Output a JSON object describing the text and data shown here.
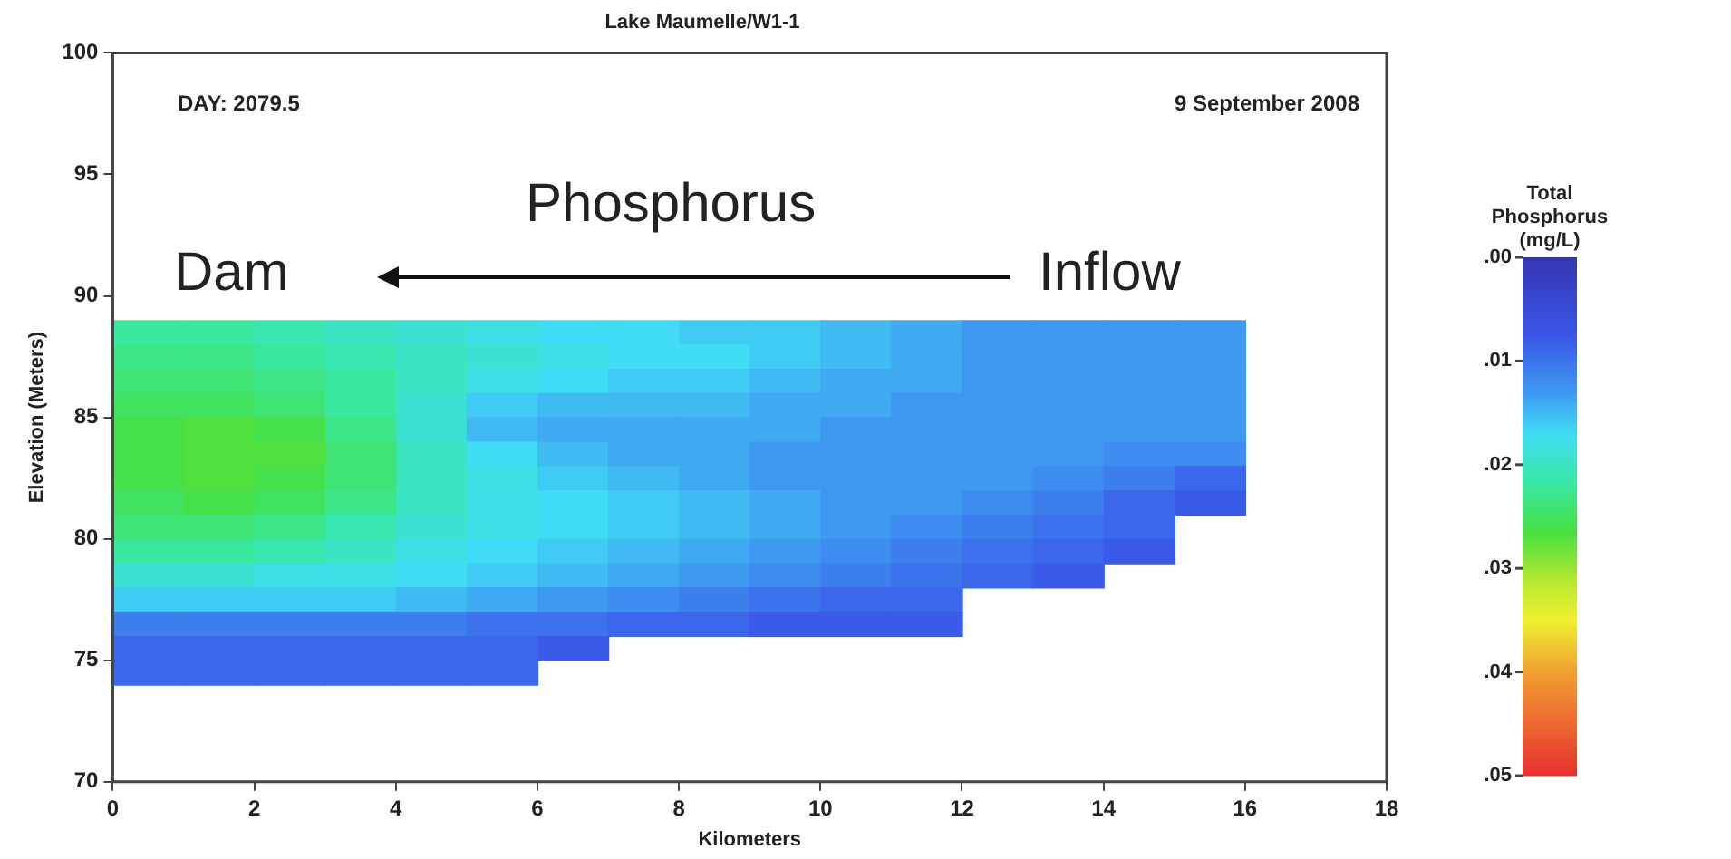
{
  "chart_data": {
    "type": "heatmap",
    "title": "Lake Maumelle/W1-1",
    "xlabel": "Kilometers",
    "ylabel": "Elevation (Meters)",
    "clabel": "Total Phosphorus (mg/L)",
    "annotations": [
      "DAY: 2079.5",
      "9 September 2008",
      "Phosphorus",
      "Dam",
      "Inflow"
    ],
    "x": [
      0.5,
      1.5,
      2.5,
      3.5,
      4.5,
      5.5,
      6.5,
      7.5,
      8.5,
      9.5,
      10.5,
      11.5,
      12.5,
      13.5,
      14.5,
      15.5
    ],
    "y": [
      88.5,
      87.5,
      86.5,
      85.5,
      84.5,
      83.5,
      82.5,
      81.5,
      80.5,
      79.5,
      78.5,
      77.5,
      76.5,
      75.5,
      74.5
    ],
    "cells": [
      [
        0.022,
        0.022,
        0.021,
        0.02,
        0.019,
        0.018,
        0.017,
        0.017,
        0.016,
        0.016,
        0.015,
        0.014,
        0.013,
        0.013,
        0.013,
        0.013
      ],
      [
        0.023,
        0.023,
        0.022,
        0.021,
        0.02,
        0.019,
        0.018,
        0.017,
        0.017,
        0.016,
        0.015,
        0.014,
        0.013,
        0.013,
        0.013,
        0.013
      ],
      [
        0.024,
        0.024,
        0.023,
        0.022,
        0.02,
        0.018,
        0.017,
        0.016,
        0.016,
        0.015,
        0.014,
        0.014,
        0.013,
        0.013,
        0.013,
        0.013
      ],
      [
        0.025,
        0.025,
        0.024,
        0.022,
        0.019,
        0.016,
        0.015,
        0.015,
        0.015,
        0.014,
        0.014,
        0.013,
        0.013,
        0.013,
        0.013,
        0.013
      ],
      [
        0.026,
        0.027,
        0.026,
        0.023,
        0.019,
        0.015,
        0.014,
        0.014,
        0.014,
        0.014,
        0.013,
        0.013,
        0.013,
        0.013,
        0.013,
        0.013
      ],
      [
        0.026,
        0.027,
        0.027,
        0.024,
        0.02,
        0.017,
        0.015,
        0.014,
        0.014,
        0.013,
        0.013,
        0.013,
        0.013,
        0.013,
        0.012,
        0.012
      ],
      [
        0.026,
        0.027,
        0.026,
        0.024,
        0.02,
        0.018,
        0.016,
        0.015,
        0.014,
        0.013,
        0.013,
        0.013,
        0.013,
        0.012,
        0.011,
        0.009
      ],
      [
        0.025,
        0.026,
        0.025,
        0.023,
        0.02,
        0.018,
        0.017,
        0.016,
        0.015,
        0.014,
        0.013,
        0.013,
        0.012,
        0.011,
        0.009,
        0.008
      ],
      [
        0.024,
        0.024,
        0.023,
        0.021,
        0.019,
        0.018,
        0.017,
        0.016,
        0.015,
        0.014,
        0.013,
        0.012,
        0.011,
        0.01,
        0.009,
        null
      ],
      [
        0.022,
        0.022,
        0.021,
        0.02,
        0.018,
        0.017,
        0.016,
        0.015,
        0.014,
        0.013,
        0.012,
        0.011,
        0.01,
        0.009,
        0.008,
        null
      ],
      [
        0.019,
        0.019,
        0.018,
        0.018,
        0.017,
        0.016,
        0.015,
        0.014,
        0.013,
        0.012,
        0.011,
        0.01,
        0.009,
        0.008,
        null,
        null
      ],
      [
        0.016,
        0.016,
        0.016,
        0.016,
        0.015,
        0.014,
        0.013,
        0.012,
        0.011,
        0.01,
        0.009,
        0.009,
        null,
        null,
        null,
        null
      ],
      [
        0.011,
        0.011,
        0.011,
        0.011,
        0.011,
        0.01,
        0.01,
        0.009,
        0.009,
        0.008,
        0.008,
        0.008,
        null,
        null,
        null,
        null
      ],
      [
        0.009,
        0.009,
        0.009,
        0.009,
        0.009,
        0.009,
        0.008,
        null,
        null,
        null,
        null,
        null,
        null,
        null,
        null,
        null
      ],
      [
        0.009,
        0.009,
        0.009,
        0.009,
        0.009,
        0.009,
        null,
        null,
        null,
        null,
        null,
        null,
        null,
        null,
        null,
        null
      ]
    ],
    "clim": [
      0.05,
      0
    ],
    "cticks": [
      {
        "value": 0,
        "label": ".00"
      },
      {
        "value": 0.01,
        "label": ".01"
      },
      {
        "value": 0.02,
        "label": ".02"
      },
      {
        "value": 0.03,
        "label": ".03"
      },
      {
        "value": 0.04,
        "label": ".04"
      },
      {
        "value": 0.05,
        "label": ".05"
      }
    ],
    "xlim": [
      0,
      18
    ],
    "xticks": [
      0,
      2,
      4,
      6,
      8,
      10,
      12,
      14,
      16,
      18
    ],
    "ylim": [
      70,
      100
    ],
    "yticks": [
      70,
      75,
      80,
      85,
      90,
      95,
      100
    ],
    "grid": false,
    "legend": false
  }
}
